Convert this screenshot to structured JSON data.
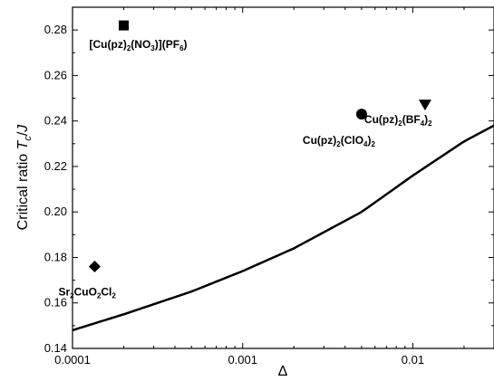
{
  "chart_data": {
    "type": "scatter",
    "title": "",
    "x_scale": "log",
    "xlim": [
      0.0001,
      0.03
    ],
    "ylim": [
      0.14,
      0.29
    ],
    "xlabel": "Δ",
    "ylabel_parts": {
      "main": "Critical ratio ",
      "T": "T",
      "c": "c",
      "slash": "/",
      "J": "J"
    },
    "x_ticks": [
      {
        "value": 0.0001,
        "label": "0.0001"
      },
      {
        "value": 0.001,
        "label": "0.001"
      },
      {
        "value": 0.01,
        "label": "0.01"
      }
    ],
    "y_ticks": [
      {
        "value": 0.14,
        "label": "0.14"
      },
      {
        "value": 0.16,
        "label": "0.16"
      },
      {
        "value": 0.18,
        "label": "0.18"
      },
      {
        "value": 0.2,
        "label": "0.20"
      },
      {
        "value": 0.22,
        "label": "0.22"
      },
      {
        "value": 0.24,
        "label": "0.24"
      },
      {
        "value": 0.26,
        "label": "0.26"
      },
      {
        "value": 0.28,
        "label": "0.28"
      }
    ],
    "points": [
      {
        "x": 0.0002,
        "y": 0.282,
        "marker": "square",
        "label_runs": [
          {
            "t": "[Cu(pz)"
          },
          {
            "t": "2",
            "sub": true
          },
          {
            "t": "(NO"
          },
          {
            "t": "3",
            "sub": true
          },
          {
            "t": ")](PF"
          },
          {
            "t": "6",
            "sub": true
          },
          {
            "t": ")"
          }
        ]
      },
      {
        "x": 0.005,
        "y": 0.243,
        "marker": "circle",
        "label_runs": [
          {
            "t": "Cu(pz)"
          },
          {
            "t": "2",
            "sub": true
          },
          {
            "t": "(ClO"
          },
          {
            "t": "4",
            "sub": true
          },
          {
            "t": ")"
          },
          {
            "t": "2",
            "sub": true
          }
        ]
      },
      {
        "x": 0.0118,
        "y": 0.247,
        "marker": "triangle-down",
        "label_runs": [
          {
            "t": "Cu(pz)"
          },
          {
            "t": "2",
            "sub": true
          },
          {
            "t": "(BF"
          },
          {
            "t": "4",
            "sub": true
          },
          {
            "t": ")"
          },
          {
            "t": "2",
            "sub": true
          }
        ]
      },
      {
        "x": 0.000135,
        "y": 0.176,
        "marker": "diamond",
        "label_runs": [
          {
            "t": "Sr"
          },
          {
            "t": "2",
            "sub": true
          },
          {
            "t": "CuO"
          },
          {
            "t": "2",
            "sub": true
          },
          {
            "t": "Cl"
          },
          {
            "t": "2",
            "sub": true
          }
        ]
      }
    ],
    "curve": {
      "x": [
        0.0001,
        0.0002,
        0.0005,
        0.001,
        0.002,
        0.005,
        0.01,
        0.02,
        0.03
      ],
      "y": [
        0.148,
        0.155,
        0.165,
        0.174,
        0.184,
        0.2,
        0.216,
        0.231,
        0.238
      ]
    }
  }
}
